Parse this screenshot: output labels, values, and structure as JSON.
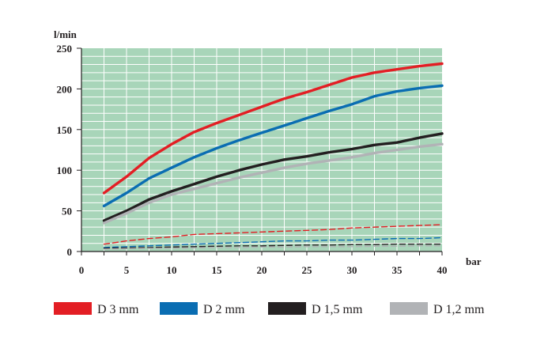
{
  "chart_data": {
    "type": "line",
    "title": "",
    "ylabel": "l/min",
    "xlabel": "bar",
    "xlim": [
      0,
      40
    ],
    "ylim": [
      0,
      250
    ],
    "x_ticks": [
      "0",
      "5",
      "10",
      "15",
      "20",
      "25",
      "30",
      "35",
      "40"
    ],
    "y_ticks": [
      "0",
      "50",
      "100",
      "150",
      "200",
      "250"
    ],
    "grid": true,
    "legend_position": "bottom",
    "plot_background": "#a8d5b9",
    "series": [
      {
        "name": "D 3 mm",
        "color": "#e31e24",
        "style": "solid",
        "x": [
          2.5,
          5,
          7.5,
          10,
          12.5,
          15,
          17.5,
          20,
          22.5,
          25,
          27.5,
          30,
          32.5,
          35,
          37.5,
          40
        ],
        "y": [
          72,
          92,
          115,
          132,
          147,
          158,
          168,
          178,
          188,
          196,
          205,
          214,
          220,
          224,
          228,
          231
        ]
      },
      {
        "name": "D 2 mm",
        "color": "#0a6db2",
        "style": "solid",
        "x": [
          2.5,
          5,
          7.5,
          10,
          12.5,
          15,
          17.5,
          20,
          22.5,
          25,
          27.5,
          30,
          32.5,
          35,
          37.5,
          40
        ],
        "y": [
          56,
          72,
          90,
          103,
          116,
          127,
          137,
          146,
          155,
          164,
          173,
          181,
          191,
          197,
          201,
          204
        ]
      },
      {
        "name": "D 1,5 mm",
        "color": "#231f20",
        "style": "solid",
        "x": [
          2.5,
          5,
          7.5,
          10,
          12.5,
          15,
          17.5,
          20,
          22.5,
          25,
          27.5,
          30,
          32.5,
          35,
          37.5,
          40
        ],
        "y": [
          38,
          50,
          64,
          74,
          83,
          92,
          100,
          107,
          113,
          117,
          122,
          126,
          131,
          134,
          140,
          145
        ]
      },
      {
        "name": "D 1,2 mm",
        "color": "#b1b3b6",
        "style": "solid",
        "x": [
          2.5,
          5,
          7.5,
          10,
          12.5,
          15,
          17.5,
          20,
          22.5,
          25,
          27.5,
          30,
          32.5,
          35,
          37.5,
          40
        ],
        "y": [
          35,
          47,
          60,
          70,
          77,
          84,
          91,
          97,
          103,
          108,
          112,
          116,
          121,
          125,
          129,
          132
        ]
      },
      {
        "name": "",
        "color": "#e31e24",
        "style": "dashed",
        "x": [
          2.5,
          5,
          7.5,
          10,
          12.5,
          15,
          17.5,
          20,
          22.5,
          25,
          27.5,
          30,
          32.5,
          35,
          37.5,
          40
        ],
        "y": [
          9,
          13,
          16,
          18,
          21,
          22,
          23,
          24,
          25,
          26,
          27,
          29,
          30,
          31,
          32,
          33
        ]
      },
      {
        "name": "",
        "color": "#0a6db2",
        "style": "dashed",
        "x": [
          2.5,
          5,
          7.5,
          10,
          12.5,
          15,
          17.5,
          20,
          22.5,
          25,
          27.5,
          30,
          32.5,
          35,
          37.5,
          40
        ],
        "y": [
          5,
          6,
          7,
          8,
          9,
          10,
          11,
          12,
          13,
          13,
          14,
          14,
          15,
          16,
          16,
          17
        ]
      },
      {
        "name": "",
        "color": "#231f20",
        "style": "dashed",
        "x": [
          2.5,
          5,
          7.5,
          10,
          12.5,
          15,
          17.5,
          20,
          22.5,
          25,
          27.5,
          30,
          32.5,
          35,
          37.5,
          40
        ],
        "y": [
          4,
          4.5,
          5,
          5.5,
          6,
          6.5,
          7,
          7,
          7.5,
          8,
          8,
          8.5,
          8.5,
          9,
          9,
          9
        ]
      },
      {
        "name": "",
        "color": "#b1b3b6",
        "style": "dashed",
        "x": [
          2.5,
          5,
          7.5,
          10,
          12.5,
          15,
          17.5,
          20,
          22.5,
          25,
          27.5,
          30,
          32.5,
          35,
          37.5,
          40
        ],
        "y": [
          3,
          3.5,
          4,
          4,
          4.5,
          5,
          5,
          5.5,
          5.5,
          6,
          6,
          6,
          6.5,
          6.5,
          7,
          7
        ]
      }
    ]
  }
}
